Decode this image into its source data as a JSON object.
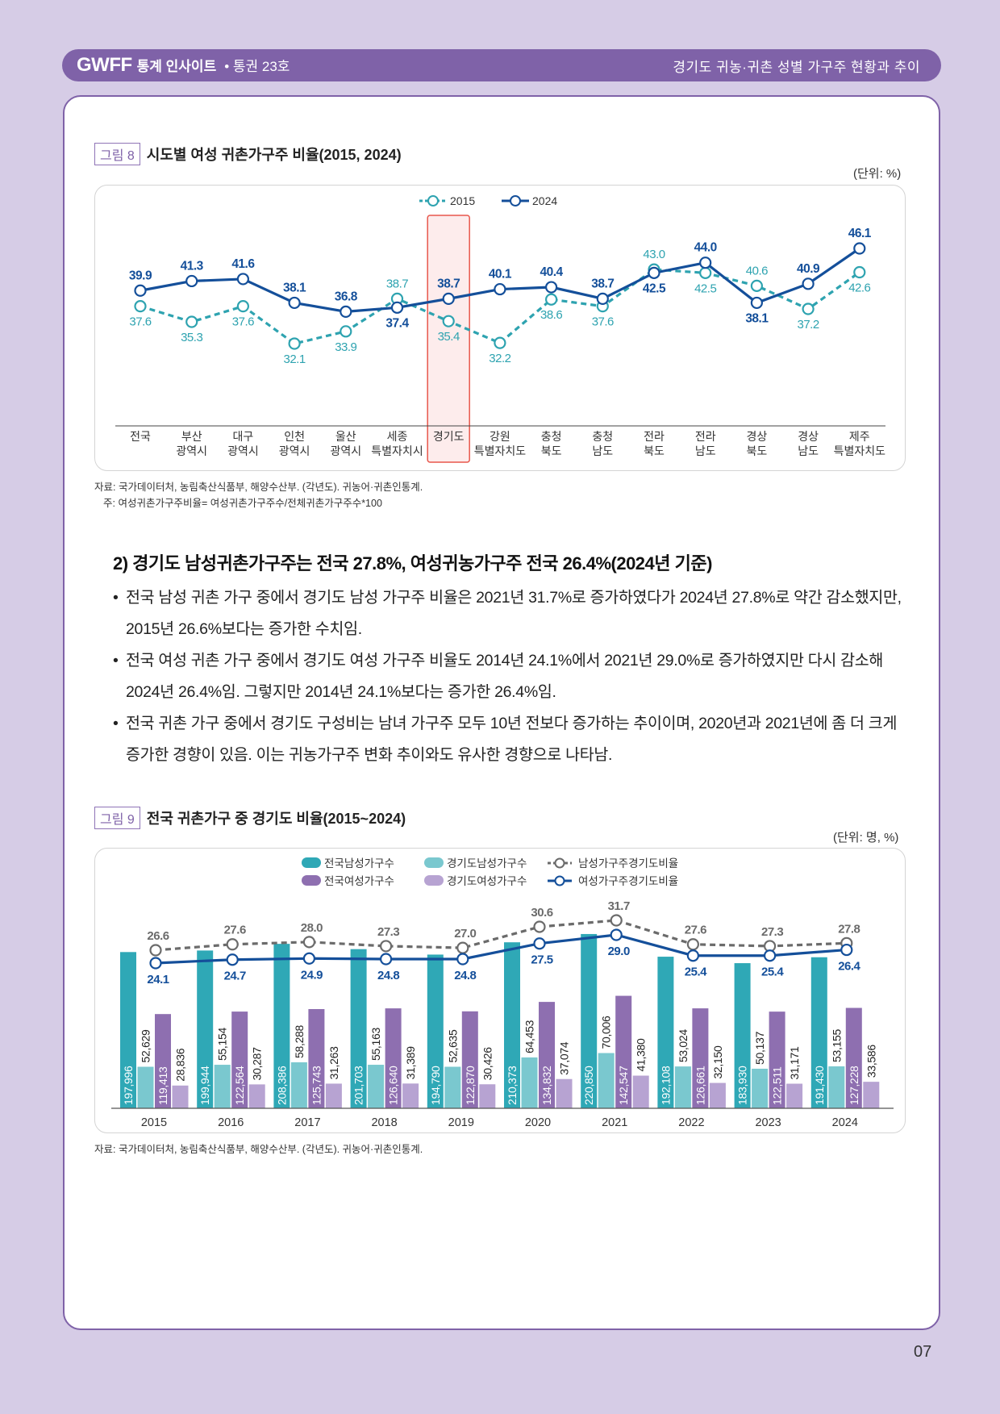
{
  "header": {
    "logo": "GWFF",
    "publication": "통계 인사이트",
    "issue": "• 통권 23호",
    "topic": "경기도 귀농·귀촌 성별 가구주 현황과 추이"
  },
  "figure8": {
    "badge": "그림 8",
    "title": "시도별 여성 귀촌가구주 비율(2015, 2024)",
    "unit": "(단위: %)",
    "source": "자료: 국가데이터처, 농림축산식품부, 해양수산부. (각년도). 귀농어·귀촌인통계.",
    "note": "주: 여성귀촌가구주비율= 여성귀촌가구주수/전체귀촌가구주수*100"
  },
  "section": {
    "heading": "2) 경기도 남성귀촌가구주는 전국 27.8%, 여성귀농가구주 전국 26.4%(2024년 기준)",
    "bullets": [
      "전국 남성 귀촌 가구 중에서 경기도 남성 가구주 비율은 2021년 31.7%로 증가하였다가 2024년 27.8%로 약간 감소했지만, 2015년 26.6%보다는 증가한 수치임.",
      "전국 여성 귀촌 가구 중에서 경기도 여성 가구주 비율도 2014년 24.1%에서 2021년 29.0%로 증가하였지만 다시 감소해 2024년 26.4%임. 그렇지만 2014년 24.1%보다는 증가한 26.4%임.",
      "전국 귀촌 가구 중에서 경기도 구성비는 남녀 가구주 모두 10년 전보다 증가하는 추이이며, 2020년과 2021년에 좀 더 크게 증가한 경향이 있음. 이는 귀농가구주 변화 추이와도 유사한 경향으로 나타남."
    ]
  },
  "figure9": {
    "badge": "그림 9",
    "title": "전국 귀촌가구 중 경기도 비율(2015~2024)",
    "unit": "(단위: 명, %)",
    "source": "자료: 국가데이터처, 농림축산식품부, 해양수산부. (각년도). 귀농어·귀촌인통계."
  },
  "page_number": "07",
  "chart_data": [
    {
      "type": "line",
      "title": "시도별 여성 귀촌가구주 비율(2015, 2024)",
      "xlabel": "",
      "ylabel": "",
      "unit": "%",
      "ylim": [
        25,
        50
      ],
      "grid": false,
      "legend": "top-center",
      "highlight_category": "경기도",
      "highlight_color": "#e8574c",
      "categories": [
        [
          "전국"
        ],
        [
          "부산",
          "광역시"
        ],
        [
          "대구",
          "광역시"
        ],
        [
          "인천",
          "광역시"
        ],
        [
          "울산",
          "광역시"
        ],
        [
          "세종",
          "특별자치시"
        ],
        [
          "경기도"
        ],
        [
          "강원",
          "특별자치도"
        ],
        [
          "충청",
          "북도"
        ],
        [
          "충청",
          "남도"
        ],
        [
          "전라",
          "북도"
        ],
        [
          "전라",
          "남도"
        ],
        [
          "경상",
          "북도"
        ],
        [
          "경상",
          "남도"
        ],
        [
          "제주",
          "특별자치도"
        ]
      ],
      "series": [
        {
          "name": "2015",
          "style": "dashed",
          "color": "#2ea3b0",
          "values": [
            37.6,
            35.3,
            37.6,
            32.1,
            33.9,
            38.7,
            35.4,
            32.2,
            38.6,
            37.6,
            43.0,
            42.5,
            40.6,
            37.2,
            42.6
          ],
          "label_pos": [
            "below",
            "below",
            "below",
            "below",
            "below",
            "above",
            "below",
            "below",
            "below",
            "below",
            "above",
            "below",
            "above",
            "below",
            "below"
          ]
        },
        {
          "name": "2024",
          "style": "solid",
          "color": "#144f9a",
          "values": [
            39.9,
            41.3,
            41.6,
            38.1,
            36.8,
            37.4,
            38.7,
            40.1,
            40.4,
            38.7,
            42.5,
            44.0,
            38.1,
            40.9,
            46.1
          ],
          "label_pos": [
            "above",
            "above",
            "above",
            "above",
            "above",
            "below",
            "above",
            "above",
            "above",
            "above",
            "below",
            "above",
            "below",
            "above",
            "above"
          ]
        }
      ]
    },
    {
      "type": "bar",
      "title": "전국 귀촌가구 중 경기도 비율(2015~2024)",
      "xlabel": "",
      "ylabel": "",
      "unit": "명, %",
      "ylim": [
        0,
        230000
      ],
      "ratio_ylim": [
        0,
        45
      ],
      "grid": false,
      "legend": "top-center",
      "categories": [
        "2015",
        "2016",
        "2017",
        "2018",
        "2019",
        "2020",
        "2021",
        "2022",
        "2023",
        "2024"
      ],
      "series": [
        {
          "name": "전국남성가구수",
          "kind": "bar",
          "color": "#2fa8b6",
          "label_color": "#ffffff",
          "labels": [
            "197,996",
            "199,944",
            "208,386",
            "201,703",
            "194,790",
            "210,373",
            "220,850",
            "192,108",
            "183,930",
            "191,430"
          ],
          "values": [
            197996,
            199944,
            208386,
            201703,
            194790,
            210373,
            220850,
            192108,
            183930,
            191430
          ]
        },
        {
          "name": "경기도남성가구수",
          "kind": "bar",
          "color": "#7ac8cf",
          "label_color": "#222222",
          "labels": [
            "52,629",
            "55,154",
            "58,288",
            "55,163",
            "52,635",
            "64,453",
            "70,006",
            "53,024",
            "50,137",
            "53,155"
          ],
          "values": [
            52629,
            55154,
            58288,
            55163,
            52635,
            64453,
            70006,
            53024,
            50137,
            53155
          ]
        },
        {
          "name": "전국여성가구수",
          "kind": "bar",
          "color": "#8e6fb0",
          "label_color": "#ffffff",
          "labels": [
            "119,413",
            "122,564",
            "125,743",
            "126,640",
            "122,870",
            "134,832",
            "142,547",
            "126,661",
            "122,511",
            "127,228"
          ],
          "values": [
            119413,
            122564,
            125743,
            126640,
            122870,
            134832,
            142547,
            126661,
            122511,
            127228
          ]
        },
        {
          "name": "경기도여성가구수",
          "kind": "bar",
          "color": "#b7a3d2",
          "label_color": "#222222",
          "labels": [
            "28,836",
            "30,287",
            "31,263",
            "31,389",
            "30,426",
            "37,074",
            "41,380",
            "32,150",
            "31,171",
            "33,586"
          ],
          "values": [
            28836,
            30287,
            31263,
            31389,
            30426,
            37074,
            41380,
            32150,
            31171,
            33586
          ]
        },
        {
          "name": "남성가구주경기도비율",
          "kind": "line",
          "style": "dashed",
          "color": "#6b6b6b",
          "values": [
            26.6,
            27.6,
            28.0,
            27.3,
            27.0,
            30.6,
            31.7,
            27.6,
            27.3,
            27.8
          ]
        },
        {
          "name": "여성가구주경기도비율",
          "kind": "line",
          "style": "solid",
          "color": "#144f9a",
          "values": [
            24.1,
            24.7,
            24.9,
            24.8,
            24.8,
            27.5,
            29.0,
            25.4,
            25.4,
            26.4
          ]
        }
      ]
    }
  ]
}
